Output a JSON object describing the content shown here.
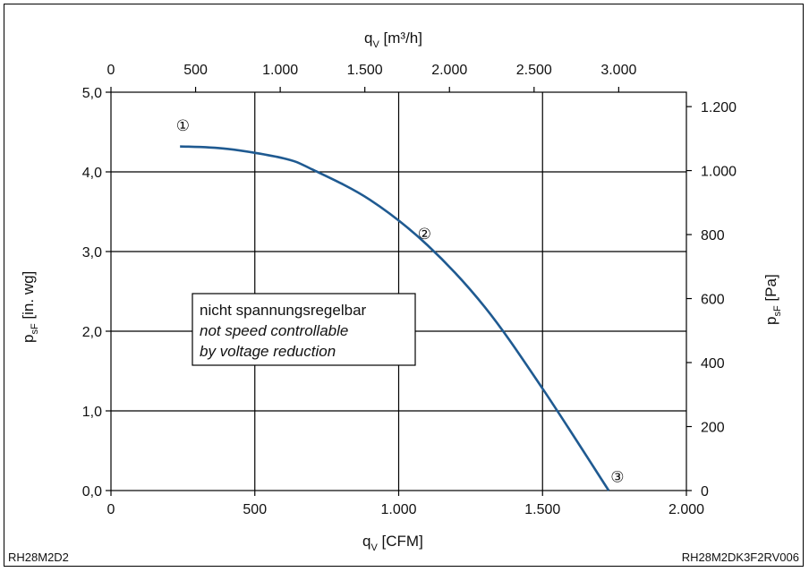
{
  "chart_data": {
    "type": "line",
    "title": "",
    "curve": {
      "x": [
        240,
        400,
        600,
        700,
        900,
        1100,
        1300,
        1500,
        1730
      ],
      "y": [
        4.32,
        4.29,
        4.17,
        4.03,
        3.65,
        3.08,
        2.3,
        1.28,
        0.0
      ]
    },
    "axes": {
      "x_bottom": {
        "label_main": "q",
        "label_sub": "V",
        "label_unit": " [CFM]",
        "range": [
          0,
          2000
        ],
        "ticks": [
          {
            "v": 0,
            "label": "0"
          },
          {
            "v": 500,
            "label": "500"
          },
          {
            "v": 1000,
            "label": "1.000"
          },
          {
            "v": 1500,
            "label": "1.500"
          },
          {
            "v": 2000,
            "label": "2.000"
          }
        ]
      },
      "x_top": {
        "label_main": "q",
        "label_sub": "V",
        "label_unit": " [m³/h]",
        "range": [
          0,
          3400
        ],
        "ticks": [
          {
            "v": 0,
            "label": "0"
          },
          {
            "v": 500,
            "label": "500"
          },
          {
            "v": 1000,
            "label": "1.000"
          },
          {
            "v": 1500,
            "label": "1.500"
          },
          {
            "v": 2000,
            "label": "2.000"
          },
          {
            "v": 2500,
            "label": "2.500"
          },
          {
            "v": 3000,
            "label": "3.000"
          }
        ]
      },
      "y_left": {
        "label_main": "p",
        "label_sub": "sF",
        "label_unit": " [in. wg]",
        "range": [
          0,
          5
        ],
        "ticks": [
          {
            "v": 0,
            "label": "0,0"
          },
          {
            "v": 1,
            "label": "1,0"
          },
          {
            "v": 2,
            "label": "2,0"
          },
          {
            "v": 3,
            "label": "3,0"
          },
          {
            "v": 4,
            "label": "4,0"
          },
          {
            "v": 5,
            "label": "5,0"
          }
        ]
      },
      "y_right": {
        "label_main": "p",
        "label_sub": "sF",
        "label_unit": " [Pa]",
        "range": [
          0,
          1245
        ],
        "ticks": [
          {
            "v": 0,
            "label": "0"
          },
          {
            "v": 200,
            "label": "200"
          },
          {
            "v": 400,
            "label": "400"
          },
          {
            "v": 600,
            "label": "600"
          },
          {
            "v": 800,
            "label": "800"
          },
          {
            "v": 1000,
            "label": "1.000"
          },
          {
            "v": 1200,
            "label": "1.200"
          }
        ]
      }
    },
    "grid": true,
    "markers": [
      {
        "label": "①",
        "x": 250,
        "y": 4.58
      },
      {
        "label": "②",
        "x": 1090,
        "y": 3.22
      },
      {
        "label": "③",
        "x": 1760,
        "y": 0.17
      }
    ],
    "annotation_lines": [
      "nicht spannungsregelbar",
      "not speed controllable",
      "by voltage reduction"
    ],
    "line_color": "#1f5a91"
  },
  "footer": {
    "left_code": "RH28M2D2",
    "right_code": "RH28M2DK3F2RV006"
  }
}
